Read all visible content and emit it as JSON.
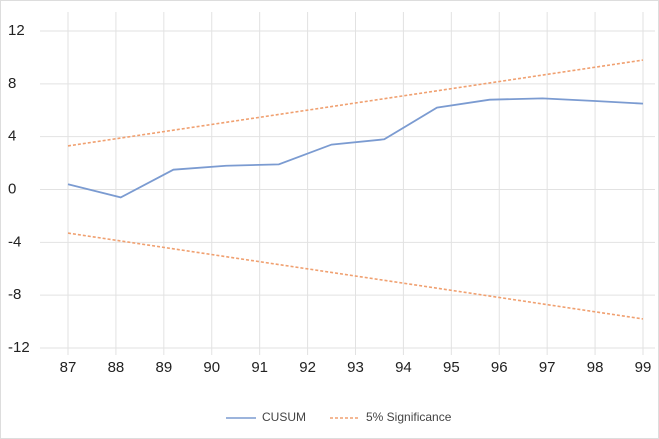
{
  "chart_data": {
    "type": "line",
    "series": [
      {
        "name": "CUSUM",
        "color": "#7b9bd1",
        "dash": false,
        "x": [
          87.0,
          88.1,
          89.2,
          90.3,
          91.4,
          92.5,
          93.6,
          94.7,
          95.8,
          96.9,
          98.0,
          99.0
        ],
        "values": [
          0.4,
          -0.6,
          1.5,
          1.8,
          1.9,
          3.4,
          3.8,
          6.2,
          6.8,
          6.9,
          6.7,
          6.5
        ]
      },
      {
        "name": "5% Significance",
        "color": "#f0a070",
        "dash": true,
        "x": [
          87,
          99
        ],
        "values": [
          3.3,
          9.8
        ]
      },
      {
        "name": null,
        "color": "#f0a070",
        "dash": true,
        "x": [
          87,
          99
        ],
        "values": [
          -3.3,
          -9.8
        ]
      }
    ],
    "xlim": [
      87,
      99
    ],
    "xticks": [
      87,
      88,
      89,
      90,
      91,
      92,
      93,
      94,
      95,
      96,
      97,
      98,
      99
    ],
    "ylim": [
      -12,
      12
    ],
    "yticks": [
      12,
      8,
      4,
      0,
      -4,
      -8,
      -12
    ],
    "grid": true,
    "legend": "bottom"
  }
}
